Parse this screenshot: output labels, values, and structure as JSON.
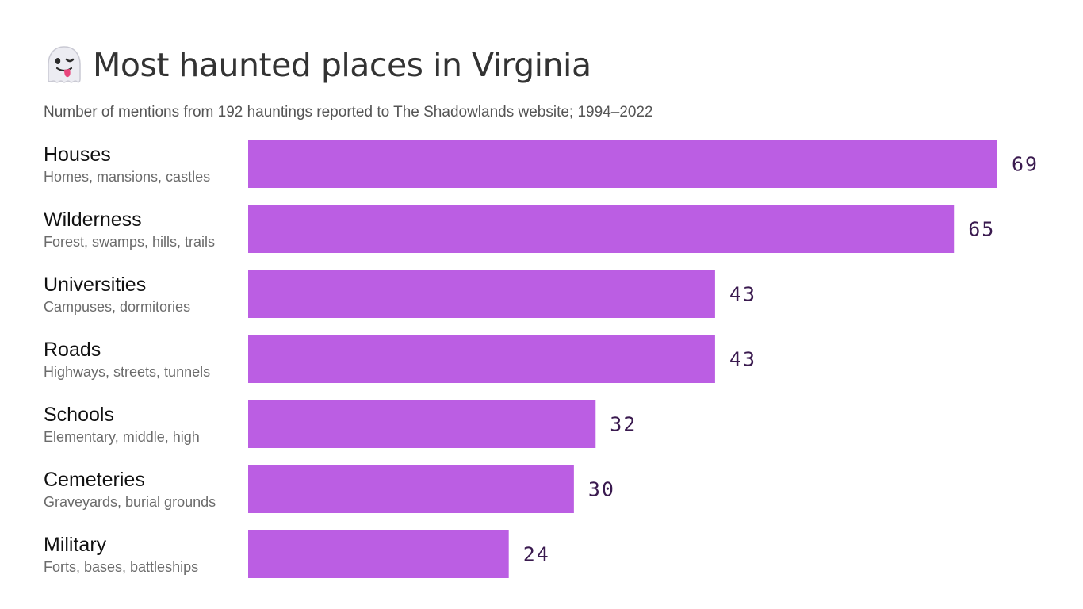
{
  "title": "Most haunted places in Virginia",
  "title_icon": "ghost-emoji-icon",
  "subtitle": "Number of mentions from 192 hauntings reported to The Shadowlands website; 1994–2022",
  "chart_data": {
    "type": "bar",
    "orientation": "horizontal",
    "categories": [
      "Houses",
      "Wilderness",
      "Universities",
      "Roads",
      "Schools",
      "Cemeteries",
      "Military"
    ],
    "category_descriptions": [
      "Homes, mansions, castles",
      "Forest, swamps, hills, trails",
      "Campuses, dormitories",
      "Highways, streets, tunnels",
      "Elementary, middle, high",
      "Graveyards, burial grounds",
      "Forts, bases, battleships"
    ],
    "values": [
      69,
      65,
      43,
      43,
      32,
      30,
      24
    ],
    "bar_color": "#bb5ee3",
    "value_label_color": "#3a1a4f",
    "grid": false,
    "legend": "none"
  }
}
